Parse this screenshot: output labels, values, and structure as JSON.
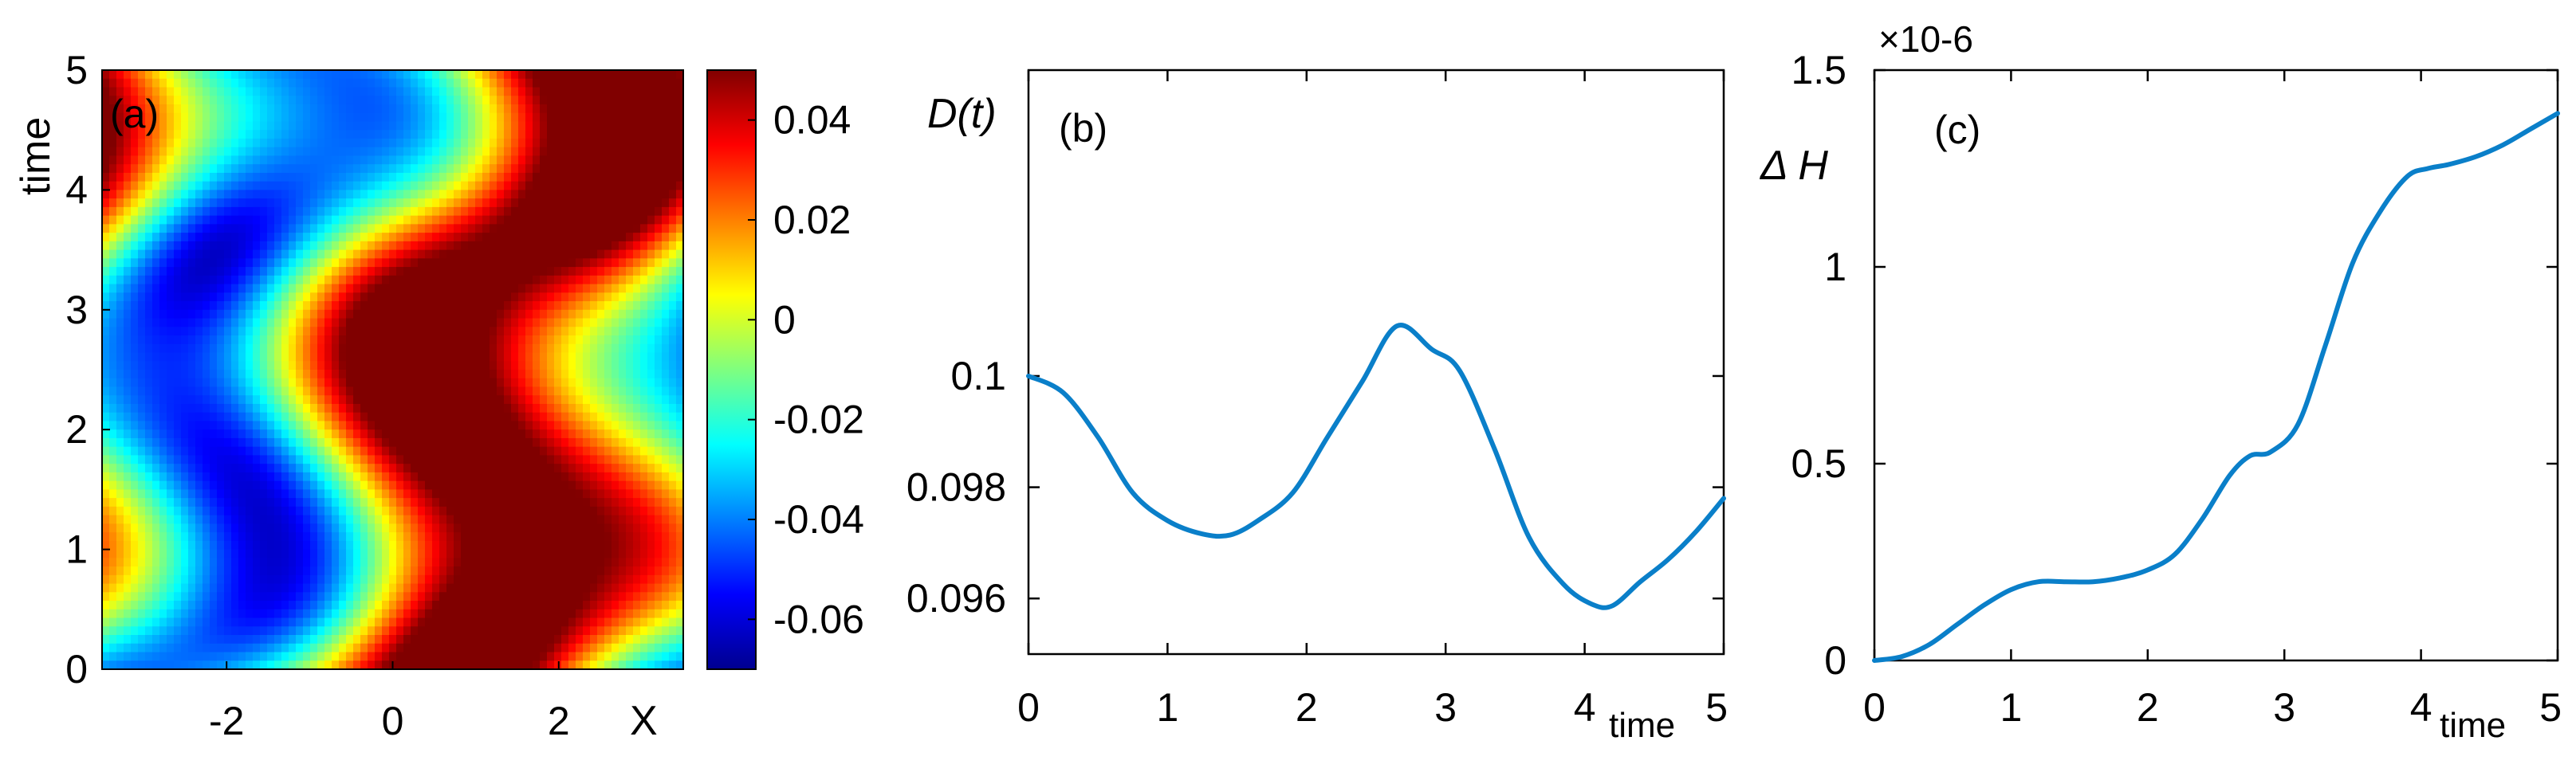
{
  "chart_data": [
    {
      "type": "heatmap",
      "panel_label": "(a)",
      "xlabel": "X",
      "ylabel": "time",
      "xlim": [
        -3.5,
        3.5
      ],
      "ylim": [
        0,
        5
      ],
      "xticks": [
        -2,
        0,
        2
      ],
      "yticks": [
        0,
        1,
        2,
        3,
        4,
        5
      ],
      "colorbar": {
        "range": [
          -0.07,
          0.05
        ],
        "ticks": [
          0.04,
          0.02,
          0,
          -0.02,
          -0.04,
          -0.06
        ],
        "tick_labels": [
          "0.04",
          "0.02",
          "0",
          "-0.02",
          "-0.04",
          "-0.06"
        ],
        "colormap": "jet"
      },
      "grid": false
    },
    {
      "type": "line",
      "panel_label": "(b)",
      "ylabel": "D(t)",
      "xlabel": "time",
      "xlim": [
        0,
        5
      ],
      "ylim": [
        0.095,
        0.1055
      ],
      "xticks": [
        0,
        1,
        2,
        3,
        4,
        5
      ],
      "yticks": [
        0.096,
        0.098,
        0.1
      ],
      "ytick_labels": [
        "0.096",
        "0.098",
        "0.1"
      ],
      "series": [
        {
          "color": "#0a7fc9",
          "x": [
            0,
            0.25,
            0.5,
            0.75,
            1.0,
            1.25,
            1.45,
            1.65,
            1.9,
            2.15,
            2.4,
            2.65,
            2.9,
            3.1,
            3.35,
            3.6,
            3.85,
            4.05,
            4.2,
            4.4,
            4.6,
            4.8,
            5.0
          ],
          "y": [
            0.1,
            0.0997,
            0.0989,
            0.0979,
            0.0974,
            0.09716,
            0.09714,
            0.0974,
            0.0979,
            0.0989,
            0.0999,
            0.1009,
            0.10048,
            0.1001,
            0.0987,
            0.0971,
            0.09625,
            0.0959,
            0.09587,
            0.0963,
            0.0967,
            0.0972,
            0.0978
          ]
        }
      ],
      "grid": false
    },
    {
      "type": "line",
      "panel_label": "(c)",
      "ylabel": "Δ H",
      "xlabel": "time",
      "exponent_label": "×10-6",
      "xlim": [
        0,
        5
      ],
      "ylim": [
        0,
        1.5
      ],
      "xticks": [
        0,
        1,
        2,
        3,
        4,
        5
      ],
      "yticks": [
        0,
        0.5,
        1,
        1.5
      ],
      "ytick_labels": [
        "0",
        "0.5",
        "1",
        "1.5"
      ],
      "series": [
        {
          "color": "#0a7fc9",
          "x": [
            0,
            0.2,
            0.4,
            0.6,
            0.8,
            1.0,
            1.2,
            1.4,
            1.6,
            1.8,
            2.0,
            2.2,
            2.4,
            2.6,
            2.75,
            2.9,
            3.1,
            3.3,
            3.5,
            3.7,
            3.9,
            4.05,
            4.2,
            4.4,
            4.6,
            4.8,
            5.0
          ],
          "y": [
            0,
            0.01,
            0.04,
            0.09,
            0.14,
            0.18,
            0.2,
            0.2,
            0.2,
            0.21,
            0.23,
            0.27,
            0.36,
            0.47,
            0.52,
            0.53,
            0.6,
            0.8,
            1.01,
            1.14,
            1.23,
            1.25,
            1.26,
            1.28,
            1.31,
            1.35,
            1.39
          ]
        }
      ],
      "grid": false
    }
  ]
}
